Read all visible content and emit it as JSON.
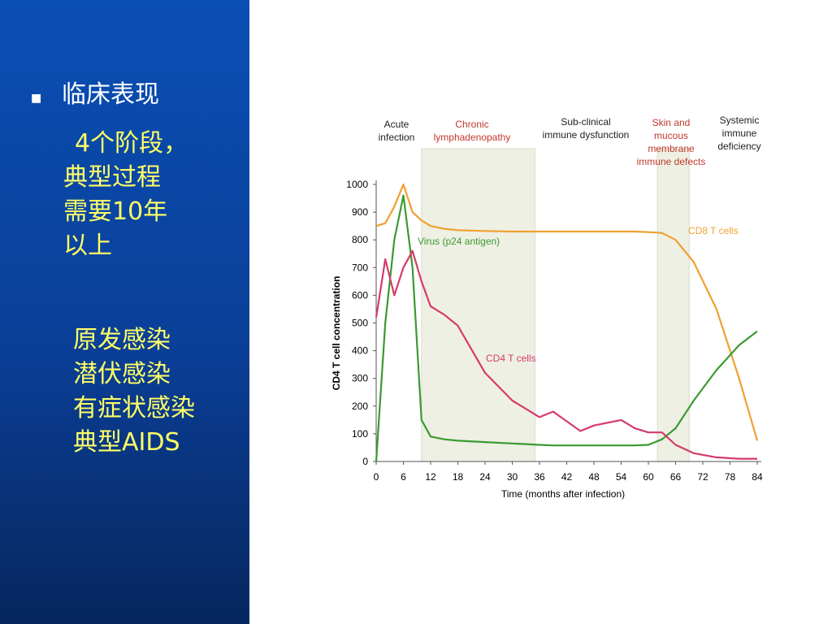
{
  "slide": {
    "bullet": "临床表现",
    "summary_lines": [
      "4个阶段，",
      "典型过程",
      "需要10年",
      "以上"
    ],
    "stages": [
      "原发感染",
      "潜伏感染",
      "有症状感染",
      "典型AIDS"
    ]
  },
  "chart_data": {
    "type": "line",
    "x_label": "Time (months after infection)",
    "y_label": "CD4 T cell concentration",
    "phases": [
      {
        "lines": [
          "Acute",
          "infection"
        ],
        "color": "#222222"
      },
      {
        "lines": [
          "Chronic",
          "lymphadenopathy"
        ],
        "color": "#c0392b"
      },
      {
        "lines": [
          "Sub-clinical",
          "immune dysfunction"
        ],
        "color": "#222222"
      },
      {
        "lines": [
          "Skin and",
          "mucous",
          "membrane",
          "immune defects"
        ],
        "color": "#c0392b"
      },
      {
        "lines": [
          "Systemic",
          "immune",
          "deficiency"
        ],
        "color": "#222222"
      }
    ],
    "shaded_regions": [
      [
        10,
        35
      ],
      [
        62,
        69
      ]
    ],
    "x": [
      0,
      2,
      4,
      6,
      8,
      10,
      12,
      15,
      18,
      24,
      30,
      36,
      39,
      45,
      48,
      54,
      57,
      60,
      63,
      66,
      70,
      75,
      80,
      84
    ],
    "series": [
      {
        "name": "CD8 T cells",
        "color": "#f0a030",
        "values": [
          850,
          860,
          920,
          1000,
          900,
          870,
          850,
          840,
          835,
          832,
          830,
          830,
          830,
          830,
          830,
          830,
          830,
          828,
          825,
          800,
          720,
          550,
          300,
          75
        ]
      },
      {
        "name": "Virus (p24 antigen)",
        "color": "#3a9a30",
        "values": [
          0,
          500,
          800,
          960,
          700,
          150,
          90,
          80,
          75,
          70,
          65,
          60,
          58,
          58,
          58,
          58,
          58,
          60,
          80,
          120,
          220,
          330,
          420,
          470
        ]
      },
      {
        "name": "CD4 T cells",
        "color": "#d63a6a",
        "values": [
          520,
          730,
          600,
          700,
          760,
          650,
          560,
          530,
          490,
          320,
          220,
          160,
          180,
          110,
          130,
          150,
          120,
          105,
          105,
          60,
          30,
          15,
          10,
          10
        ]
      }
    ],
    "xlim": [
      0,
      84
    ],
    "xticks": [
      0,
      6,
      12,
      18,
      24,
      30,
      36,
      42,
      48,
      54,
      60,
      66,
      72,
      78,
      84
    ],
    "ylim": [
      0,
      1000
    ],
    "yticks": [
      0,
      100,
      200,
      300,
      400,
      500,
      600,
      700,
      800,
      900,
      1000
    ]
  }
}
